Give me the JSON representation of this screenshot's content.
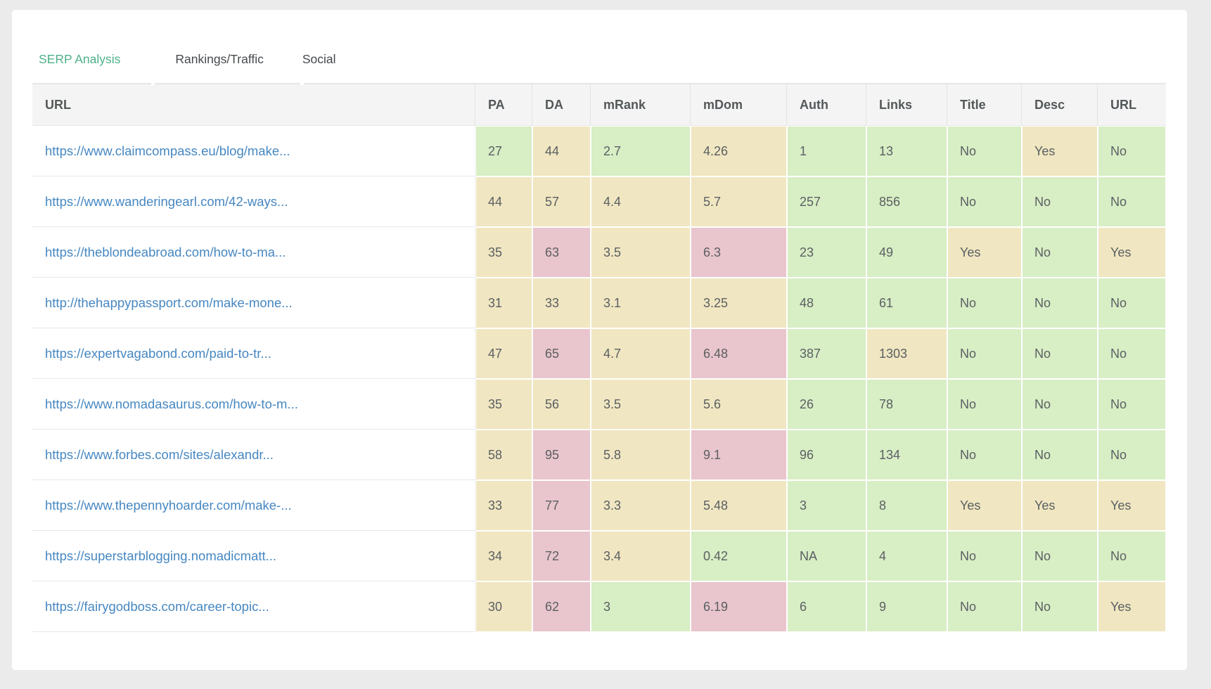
{
  "tabs": [
    {
      "label": "SERP Analysis",
      "active": true
    },
    {
      "label": "Rankings/Traffic",
      "active": false
    },
    {
      "label": "Social",
      "active": false
    }
  ],
  "colors": {
    "green": "#d8eec5",
    "yellow": "#f0e6c1",
    "red": "#e9c5cd",
    "accent_active_tab": "#4eb189",
    "link_blue": "#4687c1"
  },
  "table": {
    "columns": [
      "URL",
      "PA",
      "DA",
      "mRank",
      "mDom",
      "Auth",
      "Links",
      "Title",
      "Desc",
      "URL"
    ],
    "metric_keys": [
      "pa",
      "da",
      "mrank",
      "mdom",
      "auth",
      "links",
      "title",
      "desc",
      "url"
    ],
    "rows": [
      {
        "url": "https://www.claimcompass.eu/blog/make...",
        "metrics": [
          {
            "v": "27",
            "c": "green"
          },
          {
            "v": "44",
            "c": "yellow"
          },
          {
            "v": "2.7",
            "c": "green"
          },
          {
            "v": "4.26",
            "c": "yellow"
          },
          {
            "v": "1",
            "c": "green"
          },
          {
            "v": "13",
            "c": "green"
          },
          {
            "v": "No",
            "c": "green"
          },
          {
            "v": "Yes",
            "c": "yellow"
          },
          {
            "v": "No",
            "c": "green"
          }
        ]
      },
      {
        "url": "https://www.wanderingearl.com/42-ways...",
        "metrics": [
          {
            "v": "44",
            "c": "yellow"
          },
          {
            "v": "57",
            "c": "yellow"
          },
          {
            "v": "4.4",
            "c": "yellow"
          },
          {
            "v": "5.7",
            "c": "yellow"
          },
          {
            "v": "257",
            "c": "green"
          },
          {
            "v": "856",
            "c": "green"
          },
          {
            "v": "No",
            "c": "green"
          },
          {
            "v": "No",
            "c": "green"
          },
          {
            "v": "No",
            "c": "green"
          }
        ]
      },
      {
        "url": "https://theblondeabroad.com/how-to-ma...",
        "metrics": [
          {
            "v": "35",
            "c": "yellow"
          },
          {
            "v": "63",
            "c": "red"
          },
          {
            "v": "3.5",
            "c": "yellow"
          },
          {
            "v": "6.3",
            "c": "red"
          },
          {
            "v": "23",
            "c": "green"
          },
          {
            "v": "49",
            "c": "green"
          },
          {
            "v": "Yes",
            "c": "yellow"
          },
          {
            "v": "No",
            "c": "green"
          },
          {
            "v": "Yes",
            "c": "yellow"
          }
        ]
      },
      {
        "url": "http://thehappypassport.com/make-mone...",
        "metrics": [
          {
            "v": "31",
            "c": "yellow"
          },
          {
            "v": "33",
            "c": "yellow"
          },
          {
            "v": "3.1",
            "c": "yellow"
          },
          {
            "v": "3.25",
            "c": "yellow"
          },
          {
            "v": "48",
            "c": "green"
          },
          {
            "v": "61",
            "c": "green"
          },
          {
            "v": "No",
            "c": "green"
          },
          {
            "v": "No",
            "c": "green"
          },
          {
            "v": "No",
            "c": "green"
          }
        ]
      },
      {
        "url": "https://expertvagabond.com/paid-to-tr...",
        "metrics": [
          {
            "v": "47",
            "c": "yellow"
          },
          {
            "v": "65",
            "c": "red"
          },
          {
            "v": "4.7",
            "c": "yellow"
          },
          {
            "v": "6.48",
            "c": "red"
          },
          {
            "v": "387",
            "c": "green"
          },
          {
            "v": "1303",
            "c": "yellow"
          },
          {
            "v": "No",
            "c": "green"
          },
          {
            "v": "No",
            "c": "green"
          },
          {
            "v": "No",
            "c": "green"
          }
        ]
      },
      {
        "url": "https://www.nomadasaurus.com/how-to-m...",
        "metrics": [
          {
            "v": "35",
            "c": "yellow"
          },
          {
            "v": "56",
            "c": "yellow"
          },
          {
            "v": "3.5",
            "c": "yellow"
          },
          {
            "v": "5.6",
            "c": "yellow"
          },
          {
            "v": "26",
            "c": "green"
          },
          {
            "v": "78",
            "c": "green"
          },
          {
            "v": "No",
            "c": "green"
          },
          {
            "v": "No",
            "c": "green"
          },
          {
            "v": "No",
            "c": "green"
          }
        ]
      },
      {
        "url": "https://www.forbes.com/sites/alexandr...",
        "metrics": [
          {
            "v": "58",
            "c": "yellow"
          },
          {
            "v": "95",
            "c": "red"
          },
          {
            "v": "5.8",
            "c": "yellow"
          },
          {
            "v": "9.1",
            "c": "red"
          },
          {
            "v": "96",
            "c": "green"
          },
          {
            "v": "134",
            "c": "green"
          },
          {
            "v": "No",
            "c": "green"
          },
          {
            "v": "No",
            "c": "green"
          },
          {
            "v": "No",
            "c": "green"
          }
        ]
      },
      {
        "url": "https://www.thepennyhoarder.com/make-...",
        "metrics": [
          {
            "v": "33",
            "c": "yellow"
          },
          {
            "v": "77",
            "c": "red"
          },
          {
            "v": "3.3",
            "c": "yellow"
          },
          {
            "v": "5.48",
            "c": "yellow"
          },
          {
            "v": "3",
            "c": "green"
          },
          {
            "v": "8",
            "c": "green"
          },
          {
            "v": "Yes",
            "c": "yellow"
          },
          {
            "v": "Yes",
            "c": "yellow"
          },
          {
            "v": "Yes",
            "c": "yellow"
          }
        ]
      },
      {
        "url": "https://superstarblogging.nomadicmatt...",
        "metrics": [
          {
            "v": "34",
            "c": "yellow"
          },
          {
            "v": "72",
            "c": "red"
          },
          {
            "v": "3.4",
            "c": "yellow"
          },
          {
            "v": "0.42",
            "c": "green"
          },
          {
            "v": "NA",
            "c": "green"
          },
          {
            "v": "4",
            "c": "green"
          },
          {
            "v": "No",
            "c": "green"
          },
          {
            "v": "No",
            "c": "green"
          },
          {
            "v": "No",
            "c": "green"
          }
        ]
      },
      {
        "url": "https://fairygodboss.com/career-topic...",
        "metrics": [
          {
            "v": "30",
            "c": "yellow"
          },
          {
            "v": "62",
            "c": "red"
          },
          {
            "v": "3",
            "c": "green"
          },
          {
            "v": "6.19",
            "c": "red"
          },
          {
            "v": "6",
            "c": "green"
          },
          {
            "v": "9",
            "c": "green"
          },
          {
            "v": "No",
            "c": "green"
          },
          {
            "v": "No",
            "c": "green"
          },
          {
            "v": "Yes",
            "c": "yellow"
          }
        ]
      }
    ]
  }
}
